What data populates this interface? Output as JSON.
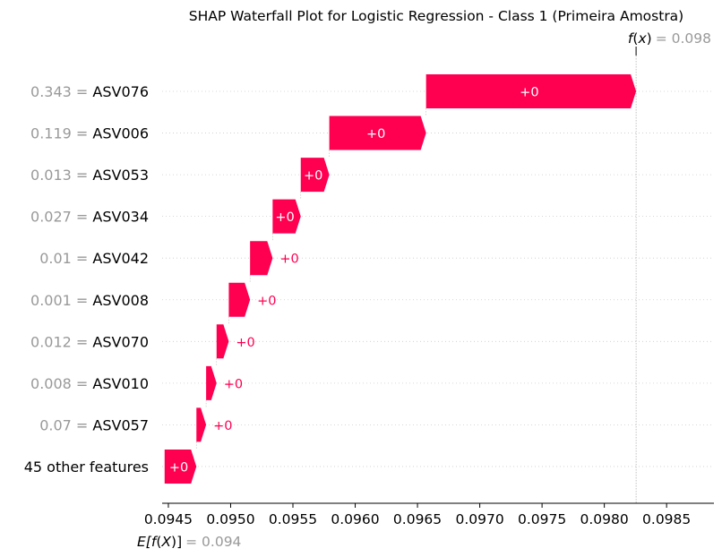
{
  "chart_data": {
    "type": "waterfall",
    "title": "SHAP Waterfall Plot for Logistic Regression - Class 1 (Primeira Amostra)",
    "fx": {
      "label_fn": "f",
      "label_arg": "x",
      "value_text": "= 0.098",
      "value": 0.098255
    },
    "ex": {
      "label_outer_open": "E[",
      "label_fn": "f",
      "label_mid_open": "(",
      "label_arg": "X",
      "label_mid_close": ")",
      "label_outer_close": "]",
      "value_text": "= 0.094",
      "value": 0.09447
    },
    "xlim": [
      0.09445,
      0.09888
    ],
    "xticks": [
      0.0945,
      0.095,
      0.0955,
      0.096,
      0.0965,
      0.097,
      0.0975,
      0.098,
      0.0985
    ],
    "xtick_labels": [
      "0.0945",
      "0.0950",
      "0.0955",
      "0.0960",
      "0.0965",
      "0.0970",
      "0.0975",
      "0.0980",
      "0.0985"
    ],
    "rows": [
      {
        "value_text": "0.343",
        "feature": "ASV076",
        "start": 0.096569,
        "end": 0.098255,
        "bar_label": "+0"
      },
      {
        "value_text": "0.119",
        "feature": "ASV006",
        "start": 0.095792,
        "end": 0.096569,
        "bar_label": "+0"
      },
      {
        "value_text": "0.013",
        "feature": "ASV053",
        "start": 0.095563,
        "end": 0.095792,
        "bar_label": "+0"
      },
      {
        "value_text": "0.027",
        "feature": "ASV034",
        "start": 0.095337,
        "end": 0.095563,
        "bar_label": "+0"
      },
      {
        "value_text": "0.01",
        "feature": "ASV042",
        "start": 0.095156,
        "end": 0.095337,
        "bar_label": "+0"
      },
      {
        "value_text": "0.001",
        "feature": "ASV008",
        "start": 0.094985,
        "end": 0.095156,
        "bar_label": "+0"
      },
      {
        "value_text": "0.012",
        "feature": "ASV070",
        "start": 0.094887,
        "end": 0.094985,
        "bar_label": "+0"
      },
      {
        "value_text": "0.008",
        "feature": "ASV010",
        "start": 0.094803,
        "end": 0.094887,
        "bar_label": "+0"
      },
      {
        "value_text": "0.07",
        "feature": "ASV057",
        "start": 0.094725,
        "end": 0.094803,
        "bar_label": "+0"
      },
      {
        "value_text": "",
        "feature": "45 other features",
        "start": 0.09447,
        "end": 0.094725,
        "bar_label": "+0"
      }
    ],
    "colors": {
      "positive": "#ff0051",
      "feature_value": "#999999",
      "text": "#000000",
      "grid": "#cccccc"
    }
  }
}
